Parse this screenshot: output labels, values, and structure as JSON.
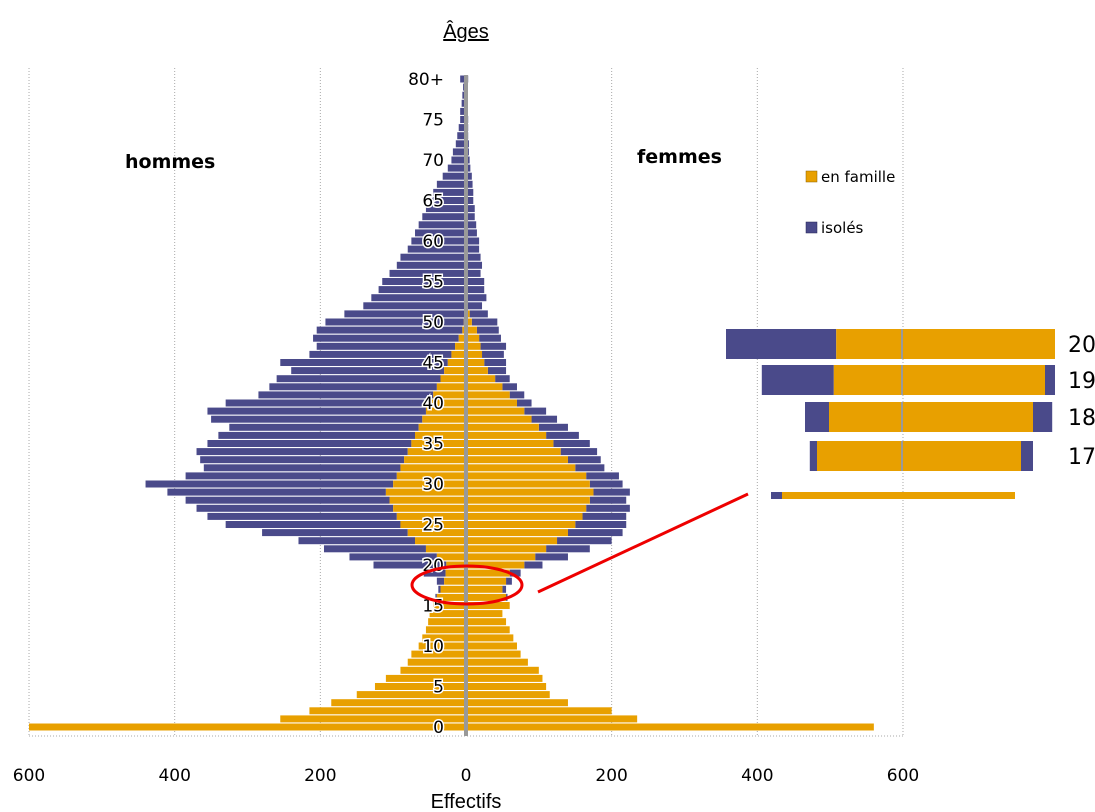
{
  "chart_data": {
    "type": "bar",
    "orientation": "horizontal",
    "subtype": "population-pyramid",
    "title": "Âges",
    "xlabel": "Effectifs",
    "ylabel": "",
    "xlim": [
      -600,
      600
    ],
    "x_ticks": [
      -600,
      -400,
      -200,
      0,
      200,
      400,
      600
    ],
    "x_tick_labels": [
      "600",
      "400",
      "200",
      "0",
      "200",
      "400",
      "600"
    ],
    "y_tick_labels": [
      "0",
      "5",
      "10",
      "15",
      "20",
      "25",
      "30",
      "35",
      "40",
      "45",
      "50",
      "55",
      "60",
      "65",
      "70",
      "75",
      "80+"
    ],
    "grid": "vertical",
    "legend_position": "top-right",
    "side_labels": {
      "left": "hommes",
      "right": "femmes"
    },
    "categories": [
      "0",
      "1",
      "2",
      "3",
      "4",
      "5",
      "6",
      "7",
      "8",
      "9",
      "10",
      "11",
      "12",
      "13",
      "14",
      "15",
      "16",
      "17",
      "18",
      "19",
      "20",
      "21",
      "22",
      "23",
      "24",
      "25",
      "26",
      "27",
      "28",
      "29",
      "30",
      "31",
      "32",
      "33",
      "34",
      "35",
      "36",
      "37",
      "38",
      "39",
      "40",
      "41",
      "42",
      "43",
      "44",
      "45",
      "46",
      "47",
      "48",
      "49",
      "50",
      "51",
      "52",
      "53",
      "54",
      "55",
      "56",
      "57",
      "58",
      "59",
      "60",
      "61",
      "62",
      "63",
      "64",
      "65",
      "66",
      "67",
      "68",
      "69",
      "70",
      "71",
      "72",
      "73",
      "74",
      "75",
      "76",
      "77",
      "78",
      "79",
      "80+"
    ],
    "series": [
      {
        "name": "en famille",
        "color": "#e8a000",
        "men": [
          600,
          255,
          215,
          185,
          150,
          125,
          110,
          90,
          80,
          75,
          65,
          60,
          55,
          52,
          50,
          45,
          40,
          35,
          30,
          28,
          27,
          40,
          55,
          70,
          80,
          90,
          95,
          100,
          105,
          110,
          100,
          95,
          90,
          85,
          80,
          75,
          70,
          65,
          60,
          55,
          50,
          45,
          40,
          35,
          30,
          25,
          20,
          15,
          10,
          5,
          3,
          2,
          1,
          0,
          0,
          0,
          0,
          0,
          0,
          0,
          0,
          0,
          0,
          0,
          0,
          0,
          0,
          0,
          0,
          0,
          0,
          0,
          0,
          0,
          0,
          0,
          0,
          0,
          0,
          0,
          0
        ],
        "women": [
          560,
          235,
          200,
          140,
          115,
          110,
          105,
          100,
          85,
          75,
          70,
          65,
          60,
          55,
          50,
          60,
          55,
          50,
          55,
          60,
          80,
          95,
          110,
          125,
          140,
          150,
          160,
          165,
          170,
          175,
          170,
          165,
          150,
          140,
          130,
          120,
          110,
          100,
          90,
          80,
          70,
          60,
          50,
          40,
          30,
          25,
          22,
          20,
          18,
          15,
          8,
          5,
          2,
          0,
          0,
          0,
          0,
          0,
          0,
          0,
          0,
          0,
          0,
          0,
          0,
          0,
          0,
          0,
          0,
          0,
          0,
          0,
          0,
          0,
          0,
          0,
          0,
          0,
          0,
          0,
          0
        ]
      },
      {
        "name": "isolés",
        "color": "#4a4a8a",
        "men": [
          0,
          0,
          0,
          0,
          0,
          0,
          0,
          0,
          0,
          0,
          0,
          0,
          0,
          0,
          0,
          0,
          2,
          3,
          10,
          30,
          100,
          120,
          140,
          160,
          200,
          240,
          260,
          270,
          280,
          300,
          340,
          290,
          270,
          280,
          290,
          280,
          270,
          260,
          290,
          300,
          280,
          240,
          230,
          225,
          210,
          230,
          195,
          190,
          200,
          200,
          190,
          165,
          140,
          130,
          120,
          115,
          105,
          95,
          90,
          80,
          75,
          70,
          65,
          60,
          55,
          50,
          45,
          40,
          32,
          25,
          20,
          18,
          14,
          12,
          10,
          8,
          8,
          6,
          5,
          4,
          8
        ],
        "women": [
          0,
          0,
          0,
          0,
          0,
          0,
          0,
          0,
          0,
          0,
          0,
          0,
          0,
          0,
          0,
          0,
          2,
          5,
          8,
          15,
          25,
          45,
          60,
          75,
          75,
          70,
          60,
          60,
          50,
          50,
          45,
          45,
          40,
          45,
          50,
          50,
          45,
          40,
          35,
          30,
          20,
          20,
          20,
          20,
          25,
          30,
          30,
          35,
          30,
          30,
          35,
          25,
          20,
          28,
          25,
          25,
          20,
          22,
          20,
          18,
          18,
          15,
          14,
          12,
          12,
          10,
          10,
          9,
          8,
          6,
          5,
          4,
          4,
          3,
          3,
          3,
          2,
          2,
          2,
          2,
          3
        ]
      }
    ]
  },
  "inset": {
    "rows": [
      "20",
      "19",
      "18",
      "17"
    ]
  },
  "legend": [
    {
      "label": "en famille",
      "color": "#e8a000"
    },
    {
      "label": "isolés",
      "color": "#4a4a8a"
    }
  ],
  "colors": {
    "grid": "#a8a8a8",
    "axis": "#999999",
    "highlight": "#ee0000"
  }
}
